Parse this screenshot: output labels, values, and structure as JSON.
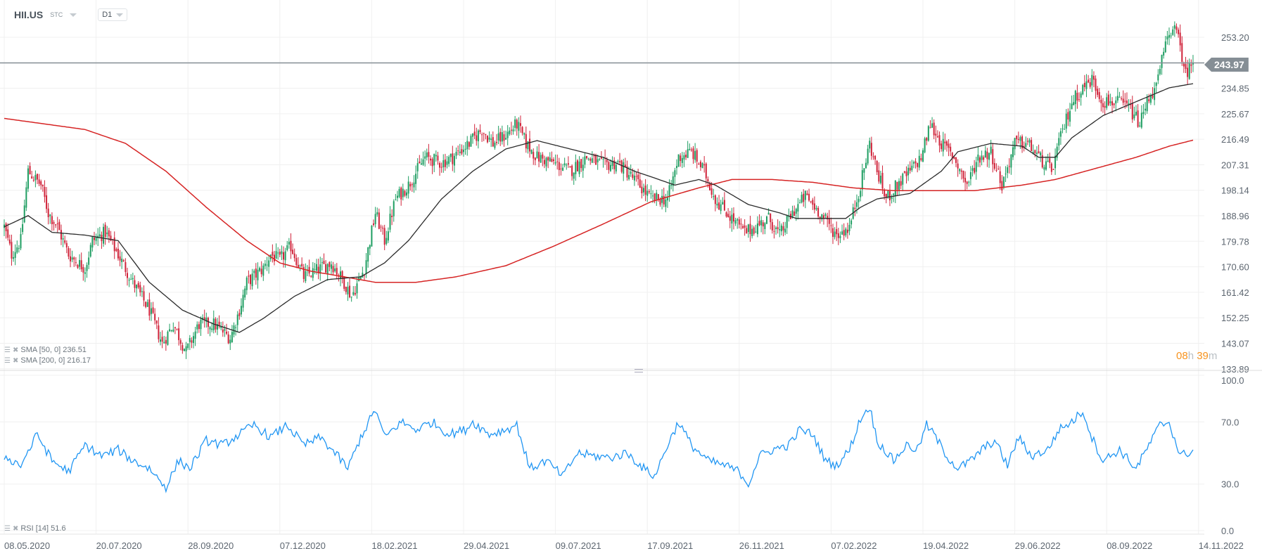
{
  "header": {
    "symbol": "HII.US",
    "market": "STC",
    "timeframe": "D1"
  },
  "current_price": "243.97",
  "timer": {
    "hours": "08",
    "h": "h",
    "minutes": "39",
    "m": "m"
  },
  "indicators": [
    {
      "label": "SMA [50, 0] 236.51",
      "color": "#222222"
    },
    {
      "label": "SMA [200, 0] 216.17",
      "color": "#d0212a"
    },
    {
      "label": "RSI [14] 51.6",
      "color": "#2196f3"
    }
  ],
  "colors": {
    "up": "#1f9e62",
    "down": "#d0233a",
    "sma50": "#2b2b2b",
    "sma200": "#d62424",
    "rsi": "#2196f3",
    "grid": "#f0f0f0"
  },
  "chart_data": [
    {
      "type": "candlestick",
      "title": "HII.US D1",
      "x_unit": "trading days from 08.05.2020",
      "x_ticks": [
        {
          "d": 0,
          "label": "08.05.2020"
        },
        {
          "d": 50,
          "label": "20.07.2020"
        },
        {
          "d": 100,
          "label": "28.09.2020"
        },
        {
          "d": 150,
          "label": "07.12.2020"
        },
        {
          "d": 200,
          "label": "18.02.2021"
        },
        {
          "d": 250,
          "label": "29.04.2021"
        },
        {
          "d": 300,
          "label": "09.07.2021"
        },
        {
          "d": 350,
          "label": "17.09.2021"
        },
        {
          "d": 400,
          "label": "26.11.2021"
        },
        {
          "d": 450,
          "label": "07.02.2022"
        },
        {
          "d": 500,
          "label": "19.04.2022"
        },
        {
          "d": 550,
          "label": "29.06.2022"
        },
        {
          "d": 600,
          "label": "08.09.2022"
        },
        {
          "d": 650,
          "label": "14.11.2022"
        }
      ],
      "y_ticks": [
        "253.20",
        "243.97",
        "234.85",
        "225.67",
        "216.49",
        "207.31",
        "198.14",
        "188.96",
        "179.78",
        "170.60",
        "161.42",
        "152.25",
        "143.07",
        "133.89"
      ],
      "ylim": [
        133.89,
        253.2
      ],
      "last_close": 243.97,
      "close_keypoints": [
        [
          0,
          185
        ],
        [
          4,
          175
        ],
        [
          9,
          180
        ],
        [
          13,
          205
        ],
        [
          20,
          200
        ],
        [
          24,
          190
        ],
        [
          29,
          185
        ],
        [
          35,
          175
        ],
        [
          44,
          170
        ],
        [
          48,
          180
        ],
        [
          55,
          183
        ],
        [
          62,
          175
        ],
        [
          70,
          165
        ],
        [
          79,
          155
        ],
        [
          86,
          143
        ],
        [
          92,
          150
        ],
        [
          99,
          140
        ],
        [
          106,
          150
        ],
        [
          114,
          150
        ],
        [
          123,
          145
        ],
        [
          128,
          155
        ],
        [
          132,
          165
        ],
        [
          141,
          170
        ],
        [
          145,
          175
        ],
        [
          150,
          173
        ],
        [
          156,
          178
        ],
        [
          163,
          167
        ],
        [
          172,
          170
        ],
        [
          178,
          172
        ],
        [
          185,
          165
        ],
        [
          189,
          160
        ],
        [
          196,
          170
        ],
        [
          202,
          190
        ],
        [
          207,
          180
        ],
        [
          213,
          195
        ],
        [
          220,
          200
        ],
        [
          229,
          210
        ],
        [
          238,
          208
        ],
        [
          244,
          210
        ],
        [
          253,
          215
        ],
        [
          260,
          220
        ],
        [
          266,
          215
        ],
        [
          273,
          218
        ],
        [
          279,
          222
        ],
        [
          284,
          215
        ],
        [
          290,
          210
        ],
        [
          299,
          208
        ],
        [
          308,
          205
        ],
        [
          317,
          210
        ],
        [
          326,
          207
        ],
        [
          334,
          208
        ],
        [
          343,
          202
        ],
        [
          352,
          195
        ],
        [
          361,
          195
        ],
        [
          367,
          210
        ],
        [
          374,
          212
        ],
        [
          381,
          205
        ],
        [
          387,
          195
        ],
        [
          396,
          188
        ],
        [
          403,
          183
        ],
        [
          409,
          185
        ],
        [
          416,
          188
        ],
        [
          422,
          182
        ],
        [
          429,
          190
        ],
        [
          436,
          196
        ],
        [
          444,
          190
        ],
        [
          453,
          182
        ],
        [
          460,
          185
        ],
        [
          466,
          200
        ],
        [
          471,
          215
        ],
        [
          475,
          205
        ],
        [
          480,
          195
        ],
        [
          486,
          200
        ],
        [
          493,
          205
        ],
        [
          499,
          210
        ],
        [
          504,
          222
        ],
        [
          510,
          215
        ],
        [
          517,
          210
        ],
        [
          524,
          200
        ],
        [
          530,
          210
        ],
        [
          537,
          212
        ],
        [
          543,
          200
        ],
        [
          550,
          215
        ],
        [
          557,
          215
        ],
        [
          563,
          210
        ],
        [
          570,
          205
        ],
        [
          574,
          215
        ],
        [
          581,
          230
        ],
        [
          587,
          235
        ],
        [
          592,
          238
        ],
        [
          598,
          230
        ],
        [
          605,
          230
        ],
        [
          612,
          228
        ],
        [
          618,
          222
        ],
        [
          623,
          232
        ],
        [
          627,
          235
        ],
        [
          631,
          248
        ],
        [
          636,
          258
        ],
        [
          640,
          250
        ],
        [
          643,
          240
        ],
        [
          647,
          243.97
        ]
      ],
      "sma50": [
        [
          0,
          185
        ],
        [
          13,
          189
        ],
        [
          26,
          183
        ],
        [
          44,
          182
        ],
        [
          62,
          180
        ],
        [
          79,
          165
        ],
        [
          97,
          155
        ],
        [
          114,
          150
        ],
        [
          128,
          147
        ],
        [
          141,
          152
        ],
        [
          158,
          160
        ],
        [
          176,
          166
        ],
        [
          194,
          167
        ],
        [
          207,
          172
        ],
        [
          220,
          180
        ],
        [
          238,
          195
        ],
        [
          255,
          205
        ],
        [
          273,
          213
        ],
        [
          290,
          216
        ],
        [
          308,
          213
        ],
        [
          326,
          210
        ],
        [
          343,
          205
        ],
        [
          352,
          203
        ],
        [
          365,
          200
        ],
        [
          378,
          202
        ],
        [
          387,
          200
        ],
        [
          405,
          193
        ],
        [
          422,
          190
        ],
        [
          431,
          188
        ],
        [
          440,
          188
        ],
        [
          458,
          188
        ],
        [
          466,
          192
        ],
        [
          475,
          195
        ],
        [
          493,
          197
        ],
        [
          510,
          205
        ],
        [
          519,
          212
        ],
        [
          537,
          215
        ],
        [
          554,
          214
        ],
        [
          563,
          210
        ],
        [
          572,
          210
        ],
        [
          581,
          217
        ],
        [
          598,
          225
        ],
        [
          616,
          230
        ],
        [
          634,
          235
        ],
        [
          647,
          236.51
        ]
      ],
      "sma200": [
        [
          0,
          224
        ],
        [
          22,
          222
        ],
        [
          44,
          220
        ],
        [
          66,
          215
        ],
        [
          88,
          205
        ],
        [
          110,
          192
        ],
        [
          132,
          180
        ],
        [
          150,
          172
        ],
        [
          167,
          169
        ],
        [
          185,
          167
        ],
        [
          202,
          165
        ],
        [
          224,
          165
        ],
        [
          246,
          167
        ],
        [
          273,
          171
        ],
        [
          299,
          178
        ],
        [
          326,
          186
        ],
        [
          352,
          194
        ],
        [
          378,
          199
        ],
        [
          396,
          202
        ],
        [
          418,
          202
        ],
        [
          440,
          201
        ],
        [
          462,
          199
        ],
        [
          484,
          198
        ],
        [
          510,
          198
        ],
        [
          528,
          198
        ],
        [
          554,
          200
        ],
        [
          572,
          202
        ],
        [
          594,
          206
        ],
        [
          616,
          210
        ],
        [
          634,
          214
        ],
        [
          647,
          216.17
        ]
      ]
    },
    {
      "type": "line",
      "title": "RSI [14]",
      "y_ticks": [
        "100.0",
        "70.0",
        "30.0",
        "0.0"
      ],
      "ylim": [
        0,
        100
      ],
      "rsi": [
        [
          0,
          48
        ],
        [
          9,
          42
        ],
        [
          18,
          62
        ],
        [
          26,
          45
        ],
        [
          35,
          38
        ],
        [
          44,
          55
        ],
        [
          53,
          48
        ],
        [
          62,
          52
        ],
        [
          70,
          45
        ],
        [
          79,
          40
        ],
        [
          88,
          28
        ],
        [
          95,
          45
        ],
        [
          101,
          40
        ],
        [
          110,
          58
        ],
        [
          119,
          55
        ],
        [
          128,
          62
        ],
        [
          136,
          68
        ],
        [
          145,
          60
        ],
        [
          154,
          68
        ],
        [
          163,
          55
        ],
        [
          172,
          60
        ],
        [
          180,
          50
        ],
        [
          187,
          40
        ],
        [
          194,
          60
        ],
        [
          202,
          78
        ],
        [
          207,
          60
        ],
        [
          216,
          70
        ],
        [
          224,
          65
        ],
        [
          233,
          70
        ],
        [
          242,
          62
        ],
        [
          251,
          65
        ],
        [
          255,
          70
        ],
        [
          264,
          62
        ],
        [
          273,
          65
        ],
        [
          279,
          68
        ],
        [
          286,
          40
        ],
        [
          295,
          45
        ],
        [
          304,
          35
        ],
        [
          312,
          50
        ],
        [
          321,
          48
        ],
        [
          330,
          47
        ],
        [
          339,
          50
        ],
        [
          348,
          40
        ],
        [
          354,
          35
        ],
        [
          361,
          55
        ],
        [
          367,
          70
        ],
        [
          374,
          55
        ],
        [
          383,
          45
        ],
        [
          392,
          42
        ],
        [
          400,
          38
        ],
        [
          405,
          30
        ],
        [
          411,
          48
        ],
        [
          418,
          52
        ],
        [
          427,
          55
        ],
        [
          433,
          65
        ],
        [
          440,
          62
        ],
        [
          447,
          45
        ],
        [
          453,
          42
        ],
        [
          460,
          52
        ],
        [
          466,
          72
        ],
        [
          471,
          80
        ],
        [
          475,
          58
        ],
        [
          484,
          45
        ],
        [
          491,
          55
        ],
        [
          497,
          52
        ],
        [
          502,
          68
        ],
        [
          506,
          62
        ],
        [
          513,
          48
        ],
        [
          519,
          40
        ],
        [
          526,
          45
        ],
        [
          532,
          52
        ],
        [
          539,
          58
        ],
        [
          546,
          42
        ],
        [
          552,
          60
        ],
        [
          559,
          48
        ],
        [
          568,
          52
        ],
        [
          574,
          65
        ],
        [
          581,
          70
        ],
        [
          587,
          77
        ],
        [
          592,
          60
        ],
        [
          598,
          45
        ],
        [
          607,
          52
        ],
        [
          616,
          40
        ],
        [
          623,
          55
        ],
        [
          629,
          68
        ],
        [
          634,
          70
        ],
        [
          640,
          48
        ],
        [
          647,
          51.6
        ]
      ]
    }
  ]
}
